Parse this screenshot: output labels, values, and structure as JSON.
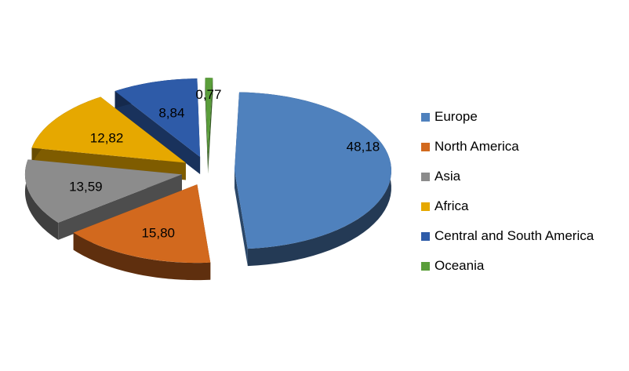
{
  "chart_data": {
    "type": "pie",
    "style": "3d-exploded",
    "categories": [
      "Europe",
      "North America",
      "Asia",
      "Africa",
      "Central and South America",
      "Oceania"
    ],
    "values": [
      48.18,
      15.8,
      13.59,
      12.82,
      8.84,
      0.77
    ],
    "data_labels": [
      "48,18",
      "15,80",
      "13,59",
      "12,82",
      "8,84",
      "0,77"
    ],
    "colors": [
      "#4F81BD",
      "#D2691E",
      "#8C8C8C",
      "#E6A800",
      "#2E5BA8",
      "#5A9E3A"
    ],
    "legend_position": "right",
    "title": ""
  },
  "legend": {
    "items": [
      {
        "label": "Europe",
        "color": "#4F81BD"
      },
      {
        "label": "North America",
        "color": "#D2691E"
      },
      {
        "label": "Asia",
        "color": "#8C8C8C"
      },
      {
        "label": "Africa",
        "color": "#E6A800"
      },
      {
        "label": "Central and South America",
        "color": "#2E5BA8"
      },
      {
        "label": "Oceania",
        "color": "#5A9E3A"
      }
    ]
  }
}
